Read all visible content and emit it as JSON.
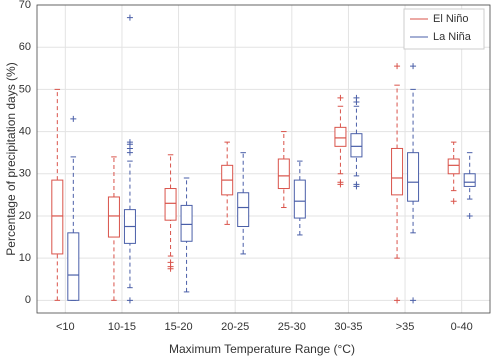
{
  "chart_data": {
    "type": "box",
    "xlabel": "Maximum Temperature Range (°C)",
    "ylabel": "Percentage of precipitation days (%)",
    "categories": [
      "<10",
      "10-15",
      "15-20",
      "20-25",
      "25-30",
      "30-35",
      ">35",
      "0-40"
    ],
    "ylim": [
      -3,
      70
    ],
    "yticks": [
      0,
      10,
      20,
      30,
      40,
      50,
      60,
      70
    ],
    "grid": true,
    "legend": "top-right",
    "series": [
      {
        "name": "El Niño",
        "color": "#d9534a",
        "boxes": [
          {
            "low": 0,
            "q1": 11,
            "median": 20,
            "q3": 28.5,
            "high": 50,
            "outliers": []
          },
          {
            "low": 0,
            "q1": 15,
            "median": 20,
            "q3": 24.5,
            "high": 34,
            "outliers": []
          },
          {
            "low": 10.5,
            "q1": 19,
            "median": 23,
            "q3": 26.5,
            "high": 34.5,
            "outliers": [
              9,
              8,
              7.5
            ]
          },
          {
            "low": 18,
            "q1": 25,
            "median": 28.5,
            "q3": 32,
            "high": 37.5,
            "outliers": []
          },
          {
            "low": 22,
            "q1": 26.5,
            "median": 29.5,
            "q3": 33.5,
            "high": 40,
            "outliers": []
          },
          {
            "low": 30,
            "q1": 36.5,
            "median": 38.5,
            "q3": 41,
            "high": 46,
            "outliers": [
              48,
              28,
              27.5
            ]
          },
          {
            "low": 10,
            "q1": 25,
            "median": 29,
            "q3": 36,
            "high": 51,
            "outliers": [
              55.5,
              0
            ]
          },
          {
            "low": 26,
            "q1": 30,
            "median": 32,
            "q3": 33.5,
            "high": 37.5,
            "outliers": [
              23.5
            ]
          }
        ]
      },
      {
        "name": "La Niña",
        "color": "#4a5fa8",
        "boxes": [
          {
            "low": 0,
            "q1": 0,
            "median": 6,
            "q3": 16,
            "high": 34,
            "outliers": [
              43
            ]
          },
          {
            "low": 3,
            "q1": 13.5,
            "median": 17.5,
            "q3": 21.5,
            "high": 33,
            "outliers": [
              67,
              37.5,
              37,
              36,
              35,
              0
            ]
          },
          {
            "low": 2,
            "q1": 14,
            "median": 18,
            "q3": 22.5,
            "high": 29,
            "outliers": []
          },
          {
            "low": 11,
            "q1": 17.5,
            "median": 22,
            "q3": 25.5,
            "high": 35,
            "outliers": []
          },
          {
            "low": 15.5,
            "q1": 19.5,
            "median": 23.5,
            "q3": 28.5,
            "high": 33,
            "outliers": []
          },
          {
            "low": 29.5,
            "q1": 34,
            "median": 36.5,
            "q3": 39.5,
            "high": 46,
            "outliers": [
              48,
              47,
              27.5,
              27
            ]
          },
          {
            "low": 16,
            "q1": 23.5,
            "median": 28,
            "q3": 35,
            "high": 50,
            "outliers": [
              55.5,
              0
            ]
          },
          {
            "low": 24,
            "q1": 27,
            "median": 28,
            "q3": 30,
            "high": 35,
            "outliers": [
              20
            ]
          }
        ]
      }
    ]
  }
}
